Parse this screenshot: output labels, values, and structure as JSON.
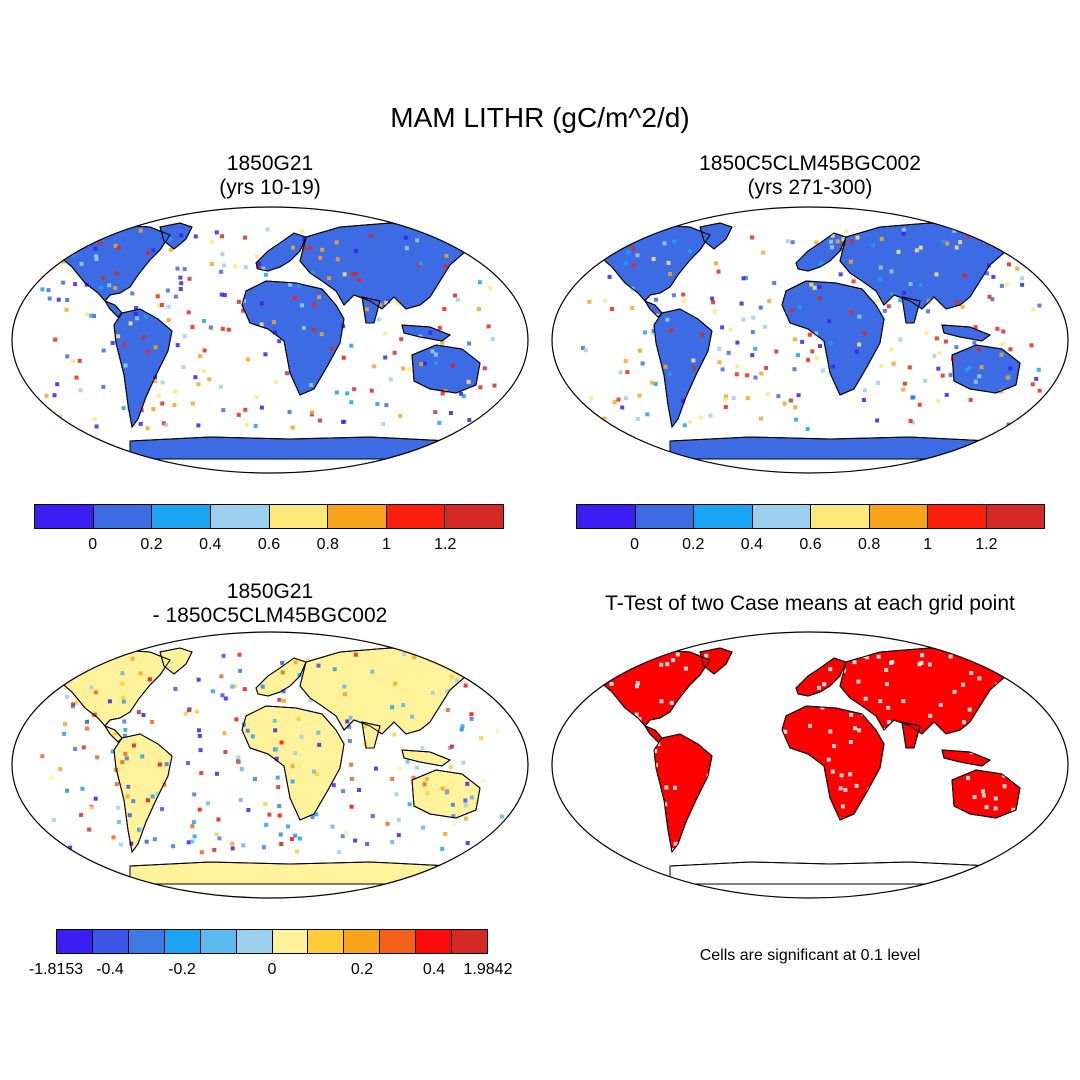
{
  "title": "MAM LITHR (gC/m^2/d)",
  "panels": {
    "p1": {
      "line1": "1850G21",
      "line2": "(yrs 10-19)"
    },
    "p2": {
      "line1": "1850C5CLM45BGC002",
      "line2": "(yrs 271-300)"
    },
    "p3": {
      "line1": "1850G21",
      "line2": "- 1850C5CLM45BGC002"
    },
    "p4": {
      "line1": "T-Test of two Case means at each grid point"
    }
  },
  "colorbar_abs": {
    "colors": [
      "#3b1ff2",
      "#3d6be3",
      "#1aa3f0",
      "#9ad0ee",
      "#fde87a",
      "#f9a31b",
      "#fb200e",
      "#d32a26"
    ],
    "labels": [
      "0",
      "0.2",
      "0.4",
      "0.6",
      "0.8",
      "1",
      "1.2"
    ]
  },
  "colorbar_diff": {
    "colors": [
      "#3b1ff2",
      "#3d55e8",
      "#3d7ae3",
      "#1aa3f0",
      "#5ab9ef",
      "#9ad0ee",
      "#fff29a",
      "#fdcc38",
      "#f9a31b",
      "#f4601a",
      "#fb0b0b",
      "#d32a26"
    ],
    "labels": [
      "-1.8153",
      "-0.4",
      "-0.2",
      "0",
      "0.2",
      "0.4",
      "1.9842"
    ]
  },
  "note": "Cells are significant at 0.1 level",
  "significance_color": "#ff0000",
  "land_fill_colors": {
    "p1": "#3d6be3",
    "p2": "#3d6be3",
    "p3": "#fff29a",
    "p4": "#ff0000"
  }
}
